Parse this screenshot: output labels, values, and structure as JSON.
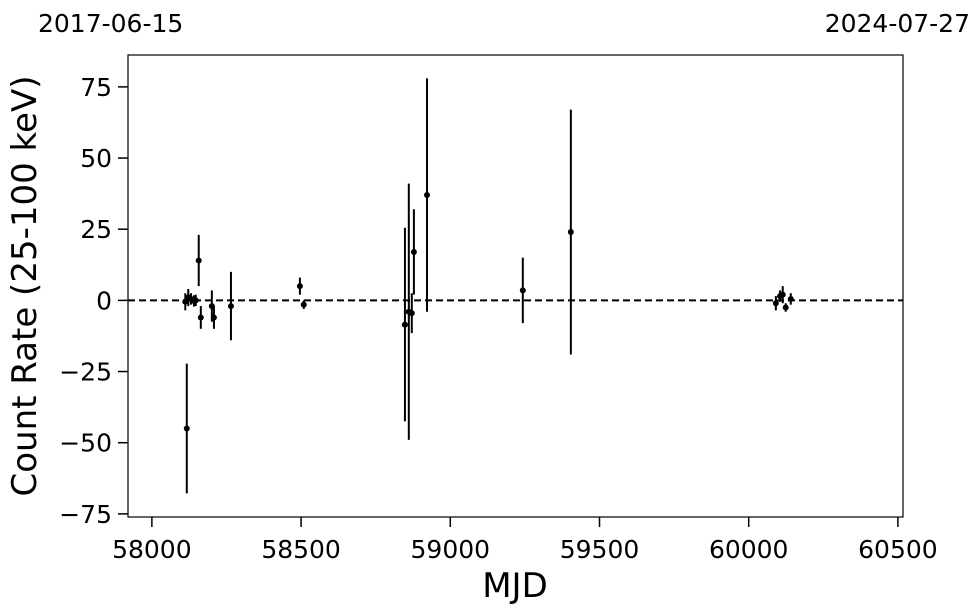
{
  "chart_data": {
    "type": "errorbar-scatter",
    "xlabel": "MJD",
    "ylabel": "Count Rate (25-100 keV)",
    "top_left_label": "2017-06-15",
    "top_right_label": "2024-07-27",
    "x": [
      58117,
      58112,
      58122,
      58131,
      58141,
      58147,
      58157,
      58164,
      58201,
      58208,
      58265,
      58496,
      58509,
      58848,
      58861,
      58871,
      58878,
      58922,
      59243,
      59404,
      60091,
      60105,
      60114,
      60124,
      60141
    ],
    "values": [
      -45,
      -0.5,
      1,
      0.5,
      -0.2,
      0,
      14,
      -6,
      -2,
      -6,
      -2,
      5,
      -1.5,
      -8.5,
      -4,
      -4.5,
      17,
      37,
      3.5,
      24,
      -1,
      1.5,
      2,
      -2.5,
      0.5
    ],
    "errors": [
      22.8,
      3,
      3,
      2,
      2,
      2,
      9,
      4,
      5.5,
      4,
      12,
      3,
      1.5,
      34,
      45,
      7,
      15,
      41,
      11.5,
      43,
      2.5,
      2,
      3,
      1.5,
      2
    ],
    "color": "#000000",
    "hline": 0,
    "xlim": [
      57920,
      60517
    ],
    "ylim": [
      -76.1,
      86.2
    ],
    "xticks": [
      58000,
      58500,
      59000,
      59500,
      60000,
      60500
    ],
    "yticks": [
      {
        "value": -75,
        "label": "−75"
      },
      {
        "value": -50,
        "label": "−50"
      },
      {
        "value": -25,
        "label": "−25"
      },
      0,
      25,
      50,
      75
    ]
  }
}
